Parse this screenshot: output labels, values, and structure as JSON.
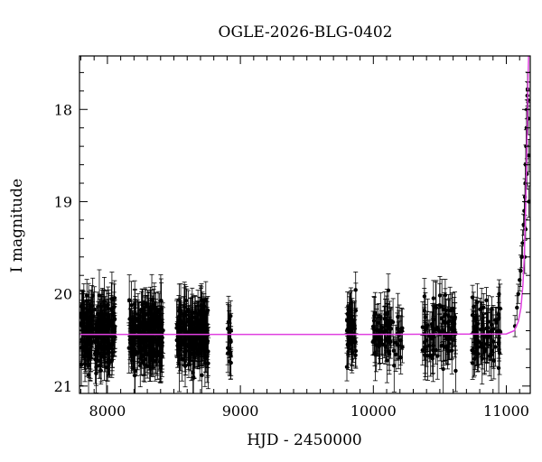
{
  "chart_data": {
    "type": "scatter",
    "title": "OGLE-2026-BLG-0402",
    "xlabel": "HJD - 2450000",
    "ylabel": "I magnitude",
    "xlim": [
      7790,
      11180
    ],
    "ylim": [
      21.08,
      17.42
    ],
    "y_inverted": true,
    "grid": false,
    "x_ticks": [
      8000,
      9000,
      10000,
      11000
    ],
    "y_ticks": [
      18,
      19,
      20,
      21
    ],
    "colors": {
      "points": "#000000",
      "model": "#e040e0",
      "axes": "#000000"
    },
    "observing_seasons": [
      {
        "start": 7800,
        "end": 8060,
        "n": 230
      },
      {
        "start": 8160,
        "end": 8420,
        "n": 230
      },
      {
        "start": 8520,
        "end": 8760,
        "n": 210
      },
      {
        "start": 8905,
        "end": 8930,
        "n": 16
      },
      {
        "start": 9800,
        "end": 9870,
        "n": 55
      },
      {
        "start": 9990,
        "end": 10230,
        "n": 75
      },
      {
        "start": 10370,
        "end": 10620,
        "n": 90
      },
      {
        "start": 10740,
        "end": 10960,
        "n": 80
      }
    ],
    "baseline_mag": 20.43,
    "baseline_scatter": 0.17,
    "typical_error": 0.2,
    "rising_points": [
      {
        "x": 11065,
        "y": 20.35
      },
      {
        "x": 11080,
        "y": 20.15
      },
      {
        "x": 11090,
        "y": 20.0
      },
      {
        "x": 11100,
        "y": 19.85
      },
      {
        "x": 11108,
        "y": 19.75
      },
      {
        "x": 11115,
        "y": 19.6
      },
      {
        "x": 11122,
        "y": 19.45
      },
      {
        "x": 11130,
        "y": 19.25
      },
      {
        "x": 11135,
        "y": 19.1
      },
      {
        "x": 11140,
        "y": 18.95
      },
      {
        "x": 11143,
        "y": 18.8
      },
      {
        "x": 11146,
        "y": 18.6
      },
      {
        "x": 11149,
        "y": 18.4
      },
      {
        "x": 11152,
        "y": 18.2
      },
      {
        "x": 11155,
        "y": 18.0
      },
      {
        "x": 11158,
        "y": 17.85
      },
      {
        "x": 11160,
        "y": 17.78
      },
      {
        "x": 11163,
        "y": 17.9
      },
      {
        "x": 11165,
        "y": 18.1
      },
      {
        "x": 11168,
        "y": 18.5
      },
      {
        "x": 11170,
        "y": 19.0
      },
      {
        "x": 11145,
        "y": 19.3
      },
      {
        "x": 11138,
        "y": 19.6
      },
      {
        "x": 11155,
        "y": 18.7
      }
    ],
    "model_curve": [
      {
        "x": 7790,
        "y": 20.44
      },
      {
        "x": 8000,
        "y": 20.44
      },
      {
        "x": 10000,
        "y": 20.44
      },
      {
        "x": 11000,
        "y": 20.435
      },
      {
        "x": 11060,
        "y": 20.4
      },
      {
        "x": 11090,
        "y": 20.3
      },
      {
        "x": 11110,
        "y": 20.15
      },
      {
        "x": 11125,
        "y": 19.9
      },
      {
        "x": 11135,
        "y": 19.6
      },
      {
        "x": 11145,
        "y": 19.1
      },
      {
        "x": 11152,
        "y": 18.6
      },
      {
        "x": 11158,
        "y": 18.1
      },
      {
        "x": 11163,
        "y": 17.7
      },
      {
        "x": 11168,
        "y": 17.42
      }
    ]
  }
}
